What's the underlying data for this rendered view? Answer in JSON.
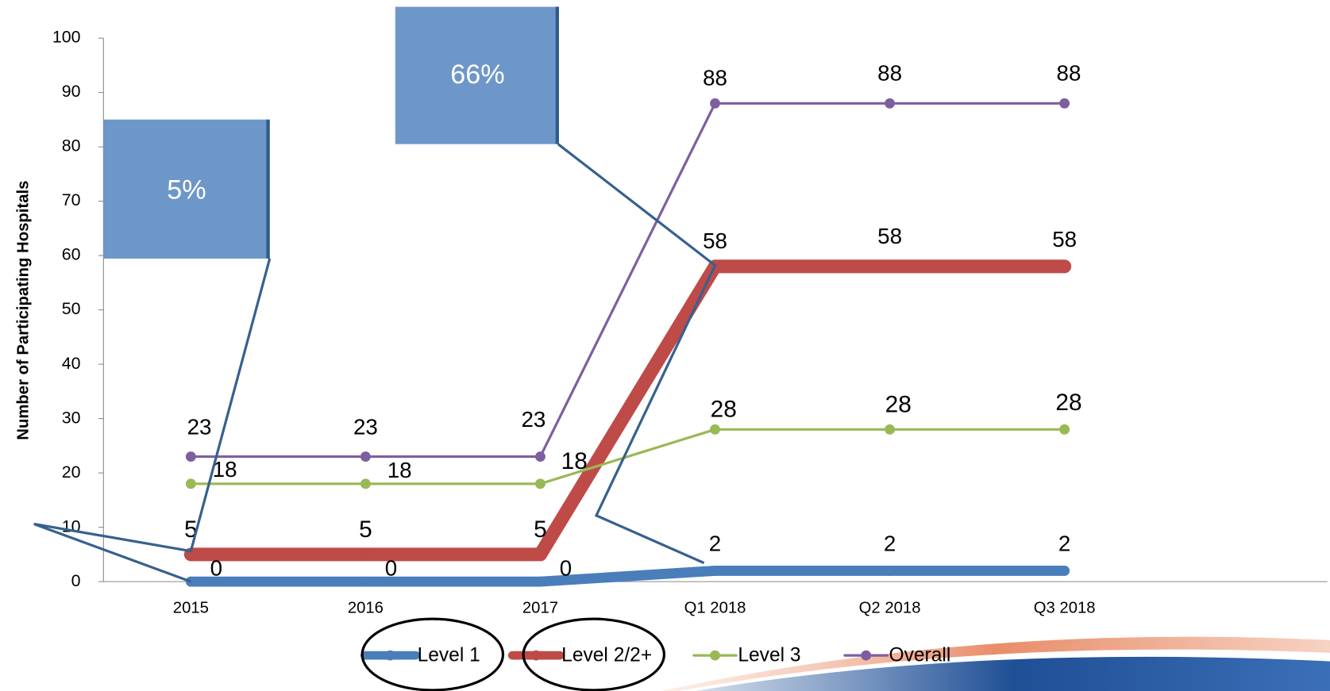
{
  "chart_data": {
    "type": "line",
    "y_label": "Number of Participating Hospitals",
    "categories": [
      "2015",
      "2016",
      "2017",
      "Q1 2018",
      "Q2 2018",
      "Q3 2018"
    ],
    "series": [
      {
        "name": "Level 1",
        "color": "#4a7ebb",
        "values": [
          0,
          0,
          0,
          2,
          2,
          2
        ]
      },
      {
        "name": "Level 2/2+",
        "color": "#be4b48",
        "values": [
          5,
          5,
          5,
          58,
          58,
          58
        ]
      },
      {
        "name": "Level 3",
        "color": "#98b954",
        "values": [
          18,
          18,
          18,
          28,
          28,
          28
        ]
      },
      {
        "name": "Overall",
        "color": "#7d5fa0",
        "values": [
          23,
          23,
          23,
          88,
          88,
          88
        ]
      }
    ],
    "ylim": [
      0,
      100
    ],
    "yticks": [
      0,
      10,
      20,
      30,
      40,
      50,
      60,
      70,
      80,
      90,
      100
    ],
    "annotations": [
      "5%",
      "66%"
    ]
  }
}
